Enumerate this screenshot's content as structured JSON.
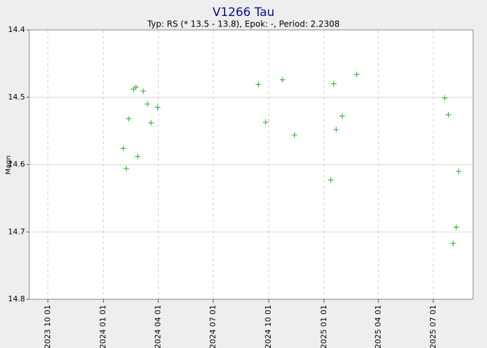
{
  "chart_data": {
    "type": "scatter",
    "title": "V1266 Tau",
    "subtitle": "Typ: RS (* 13.5 - 13.8), Epok: -, Period: 2.2308",
    "y_label": "Magn",
    "y_inverted": true,
    "grid": true,
    "xlim": [
      "2023-08-31",
      "2025-09-05"
    ],
    "xticks": [
      {
        "value": "2023-10-01",
        "label": "2023 10 01"
      },
      {
        "value": "2024-01-01",
        "label": "2024 01 01"
      },
      {
        "value": "2024-04-01",
        "label": "2024 04 01"
      },
      {
        "value": "2024-07-01",
        "label": "2024 07 01"
      },
      {
        "value": "2024-10-01",
        "label": "2024 10 01"
      },
      {
        "value": "2025-01-01",
        "label": "2025 01 01"
      },
      {
        "value": "2025-04-01",
        "label": "2025 04 01"
      },
      {
        "value": "2025-07-01",
        "label": "2025 07 01"
      }
    ],
    "ylim": [
      14.4,
      14.8
    ],
    "yticks": [
      14.4,
      14.5,
      14.6,
      14.7,
      14.8
    ],
    "series": [
      {
        "color": "#3cb83c",
        "x": [
          "2024-02-03",
          "2024-02-08",
          "2024-02-12",
          "2024-02-20",
          "2024-02-24",
          "2024-02-27",
          "2024-03-07",
          "2024-03-14",
          "2024-03-20",
          "2024-03-31",
          "2024-09-14",
          "2024-09-26",
          "2024-10-24",
          "2024-11-13",
          "2025-01-12",
          "2025-01-17",
          "2025-01-21",
          "2025-01-31",
          "2025-02-24",
          "2025-07-20",
          "2025-07-26",
          "2025-08-03",
          "2025-08-08",
          "2025-08-12"
        ],
        "values": [
          14.576,
          14.606,
          14.532,
          14.488,
          14.485,
          14.588,
          14.491,
          14.51,
          14.538,
          14.515,
          14.481,
          14.537,
          14.474,
          14.556,
          14.623,
          14.48,
          14.548,
          14.528,
          14.466,
          14.501,
          14.526,
          14.717,
          14.693,
          14.61
        ]
      }
    ]
  }
}
